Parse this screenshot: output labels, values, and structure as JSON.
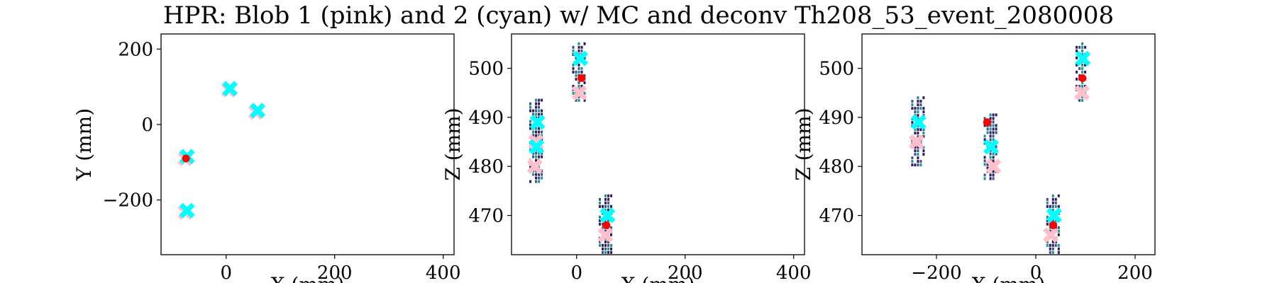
{
  "figure": {
    "title": "HPR: Blob 1 (pink) and 2 (cyan) w/ MC and deconv Th208_53_event_2080008"
  },
  "colors": {
    "blob1": "#ffc0cb",
    "blob2": "#00ffff",
    "mc": "#ff0000",
    "deconv_dark": "#2b1a5e",
    "deconv_mid": "#3b528b",
    "deconv_teal": "#21918c"
  },
  "chart_data": [
    {
      "type": "scatter",
      "title": "",
      "xlabel": "X (mm)",
      "ylabel": "Y (mm)",
      "xlim": [
        -120,
        420
      ],
      "ylim": [
        -345,
        240
      ],
      "xticks": [
        "0",
        "200",
        "400"
      ],
      "yticks": [
        "200",
        "0",
        "−200"
      ],
      "xtick_values": [
        0,
        200,
        400
      ],
      "ytick_values": [
        200,
        0,
        -200
      ],
      "series": [
        {
          "name": "Blob 1",
          "marker": "X",
          "x": [
            5,
            55,
            -75,
            -75
          ],
          "y": [
            92,
            33,
            -90,
            -232
          ]
        },
        {
          "name": "Blob 2",
          "marker": "X",
          "x": [
            7,
            58,
            -72,
            -72
          ],
          "y": [
            95,
            37,
            -85,
            -228
          ]
        },
        {
          "name": "MC",
          "marker": "dot",
          "x": [
            -74
          ],
          "y": [
            -90
          ]
        }
      ],
      "deconv": []
    },
    {
      "type": "scatter",
      "title": "",
      "xlabel": "X (mm)",
      "ylabel": "Z (mm)",
      "xlim": [
        -120,
        420
      ],
      "ylim": [
        462,
        507
      ],
      "xticks": [
        "0",
        "200",
        "400"
      ],
      "yticks": [
        "500",
        "490",
        "480",
        "470"
      ],
      "xtick_values": [
        0,
        200,
        400
      ],
      "ytick_values": [
        500,
        490,
        480,
        470
      ],
      "series": [
        {
          "name": "Blob 1",
          "marker": "X",
          "x": [
            5,
            -75,
            -77,
            53
          ],
          "y": [
            495,
            485,
            480,
            466
          ]
        },
        {
          "name": "Blob 2",
          "marker": "X",
          "x": [
            7,
            -72,
            -74,
            57
          ],
          "y": [
            502,
            489,
            484,
            470
          ]
        },
        {
          "name": "MC",
          "marker": "dot",
          "x": [
            9,
            55
          ],
          "y": [
            498,
            468
          ]
        }
      ],
      "deconv": [
        {
          "x": 5,
          "y": 499,
          "dx": 12,
          "dy": 12
        },
        {
          "x": -73,
          "y": 485,
          "dx": 14,
          "dy": 17
        },
        {
          "x": 55,
          "y": 468,
          "dx": 14,
          "dy": 12
        }
      ]
    },
    {
      "type": "scatter",
      "title": "",
      "xlabel": "X (mm)",
      "ylabel": "Z (mm)",
      "xlim": [
        -350,
        240
      ],
      "ylim": [
        462,
        507
      ],
      "xticks": [
        "−200",
        "0",
        "200"
      ],
      "yticks": [
        "500",
        "490",
        "480",
        "470"
      ],
      "xtick_values": [
        -200,
        0,
        200
      ],
      "ytick_values": [
        500,
        490,
        480,
        470
      ],
      "series": [
        {
          "name": "Blob 1",
          "marker": "X",
          "x": [
            93,
            -240,
            -85,
            30
          ],
          "y": [
            495,
            485,
            480,
            466
          ]
        },
        {
          "name": "Blob 2",
          "marker": "X",
          "x": [
            95,
            -236,
            -90,
            37
          ],
          "y": [
            502,
            489,
            484,
            470
          ]
        },
        {
          "name": "MC",
          "marker": "dot",
          "x": [
            94,
            -98,
            35
          ],
          "y": [
            498,
            489,
            468
          ]
        }
      ],
      "deconv": [
        {
          "x": 93,
          "y": 499,
          "dx": 10,
          "dy": 12
        },
        {
          "x": -237,
          "y": 487,
          "dx": 12,
          "dy": 14
        },
        {
          "x": -90,
          "y": 484,
          "dx": 14,
          "dy": 13
        },
        {
          "x": 35,
          "y": 468,
          "dx": 12,
          "dy": 12
        }
      ]
    }
  ]
}
